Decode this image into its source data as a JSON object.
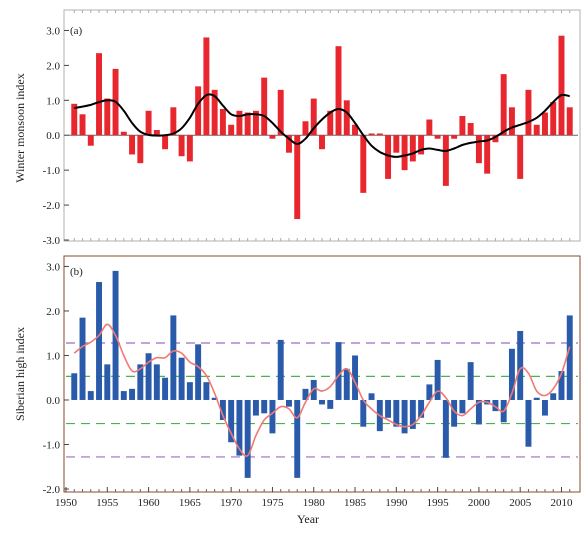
{
  "chart_data": [
    {
      "type": "bar",
      "panel_label": "(a)",
      "ylabel": "Winter monsoon index",
      "ylim": [
        -3.0,
        3.3
      ],
      "yticks": [
        "3.0",
        "2.0",
        "1.0",
        "0.0",
        "-1.0",
        "-2.0",
        "-3.0"
      ],
      "ytick_values": [
        3,
        2,
        1,
        0,
        -1,
        -2,
        -3
      ],
      "x": [
        1951,
        1952,
        1953,
        1954,
        1955,
        1956,
        1957,
        1958,
        1959,
        1960,
        1961,
        1962,
        1963,
        1964,
        1965,
        1966,
        1967,
        1968,
        1969,
        1970,
        1971,
        1972,
        1973,
        1974,
        1975,
        1976,
        1977,
        1978,
        1979,
        1980,
        1981,
        1982,
        1983,
        1984,
        1985,
        1986,
        1987,
        1988,
        1989,
        1990,
        1991,
        1992,
        1993,
        1994,
        1995,
        1996,
        1997,
        1998,
        1999,
        2000,
        2001,
        2002,
        2003,
        2004,
        2005,
        2006,
        2007,
        2008,
        2009,
        2010,
        2011
      ],
      "values": [
        0.9,
        0.6,
        -0.3,
        2.35,
        1.05,
        1.9,
        0.1,
        -0.55,
        -0.8,
        0.7,
        0.15,
        -0.4,
        0.8,
        -0.6,
        -0.75,
        1.4,
        2.8,
        1.3,
        0.75,
        0.3,
        0.7,
        0.65,
        0.7,
        1.65,
        -0.1,
        1.3,
        -0.5,
        -2.4,
        0.4,
        1.05,
        -0.4,
        0.7,
        2.55,
        1.0,
        0.3,
        -1.65,
        0.05,
        0.05,
        -1.25,
        -0.5,
        -1.0,
        -0.75,
        -0.55,
        0.45,
        -0.1,
        -1.45,
        -0.1,
        0.55,
        0.35,
        -0.8,
        -1.1,
        -0.2,
        1.75,
        0.8,
        -1.25,
        1.3,
        0.3,
        0.65,
        0.95,
        2.85,
        0.8
      ],
      "smooth": [
        0.78,
        0.82,
        0.87,
        0.95,
        1.0,
        0.96,
        0.7,
        0.35,
        0.1,
        0.01,
        -0.01,
        0.0,
        0.05,
        0.2,
        0.5,
        0.9,
        1.15,
        1.12,
        0.85,
        0.6,
        0.55,
        0.6,
        0.6,
        0.55,
        0.35,
        0.1,
        -0.1,
        -0.25,
        -0.1,
        0.2,
        0.45,
        0.65,
        0.75,
        0.65,
        0.35,
        0.0,
        -0.3,
        -0.48,
        -0.58,
        -0.62,
        -0.58,
        -0.52,
        -0.42,
        -0.38,
        -0.42,
        -0.45,
        -0.38,
        -0.28,
        -0.22,
        -0.18,
        -0.15,
        -0.05,
        0.1,
        0.22,
        0.3,
        0.38,
        0.5,
        0.7,
        0.95,
        1.15,
        1.12
      ],
      "bar_color": "#e8262d",
      "line_color": "#000000",
      "grid": false
    },
    {
      "type": "bar",
      "panel_label": "(b)",
      "ylabel": "Siberian high index",
      "xlabel": "Year",
      "ylim": [
        -2.0,
        3.1
      ],
      "yticks": [
        "3.0",
        "2.0",
        "1.0",
        "0.0",
        "-1.0",
        "-2.0"
      ],
      "ytick_values": [
        3,
        2,
        1,
        0,
        -1,
        -2
      ],
      "xticks": [
        "1950",
        "1955",
        "1960",
        "1965",
        "1970",
        "1975",
        "1980",
        "1985",
        "1990",
        "1995",
        "2000",
        "2005",
        "2010"
      ],
      "xtick_values": [
        1950,
        1955,
        1960,
        1965,
        1970,
        1975,
        1980,
        1985,
        1990,
        1995,
        2000,
        2005,
        2010
      ],
      "xlim": [
        1950,
        2012
      ],
      "x": [
        1951,
        1952,
        1953,
        1954,
        1955,
        1956,
        1957,
        1958,
        1959,
        1960,
        1961,
        1962,
        1963,
        1964,
        1965,
        1966,
        1967,
        1968,
        1969,
        1970,
        1971,
        1972,
        1973,
        1974,
        1975,
        1976,
        1977,
        1978,
        1979,
        1980,
        1981,
        1982,
        1983,
        1984,
        1985,
        1986,
        1987,
        1988,
        1989,
        1990,
        1991,
        1992,
        1993,
        1994,
        1995,
        1996,
        1997,
        1998,
        1999,
        2000,
        2001,
        2002,
        2003,
        2004,
        2005,
        2006,
        2007,
        2008,
        2009,
        2010,
        2011
      ],
      "values": [
        0.6,
        1.85,
        0.2,
        2.65,
        0.8,
        2.9,
        0.2,
        0.25,
        0.8,
        1.05,
        0.8,
        0.5,
        1.9,
        0.95,
        0.4,
        1.25,
        0.4,
        0.05,
        -0.45,
        -0.95,
        -1.25,
        -1.75,
        -0.35,
        -0.3,
        -0.75,
        1.35,
        -0.15,
        -1.75,
        0.25,
        0.45,
        -0.1,
        -0.2,
        1.3,
        0.7,
        1.0,
        -0.6,
        0.15,
        -0.7,
        -0.4,
        -0.6,
        -0.75,
        -0.65,
        -0.4,
        0.35,
        0.9,
        -1.3,
        -0.6,
        -0.3,
        0.85,
        -0.55,
        -0.1,
        -0.25,
        -0.5,
        1.15,
        1.55,
        -1.05,
        0.05,
        -0.35,
        0.15,
        0.65,
        1.9
      ],
      "smooth": [
        1.05,
        1.2,
        1.3,
        1.45,
        1.7,
        1.45,
        1.0,
        0.65,
        0.7,
        0.85,
        0.95,
        0.95,
        1.1,
        1.05,
        0.85,
        0.75,
        0.55,
        0.15,
        -0.35,
        -0.75,
        -1.1,
        -1.25,
        -0.8,
        -0.45,
        -0.3,
        -0.15,
        -0.2,
        -0.4,
        -0.05,
        0.25,
        0.2,
        0.3,
        0.55,
        0.7,
        0.4,
        0.0,
        -0.2,
        -0.35,
        -0.45,
        -0.55,
        -0.6,
        -0.55,
        -0.35,
        -0.05,
        0.2,
        0.05,
        -0.25,
        -0.35,
        -0.2,
        -0.05,
        -0.05,
        -0.15,
        -0.25,
        0.15,
        0.7,
        0.6,
        0.2,
        0.1,
        0.25,
        0.6,
        1.2
      ],
      "bar_color": "#2a5bab",
      "line_color": "#f07a72",
      "reference_lines": [
        {
          "value": 1.28,
          "color": "#9a6fc7"
        },
        {
          "value": 0.53,
          "color": "#4fb04f"
        },
        {
          "value": -0.53,
          "color": "#4fb04f"
        },
        {
          "value": -1.28,
          "color": "#9a6fc7"
        }
      ],
      "grid": false
    }
  ]
}
